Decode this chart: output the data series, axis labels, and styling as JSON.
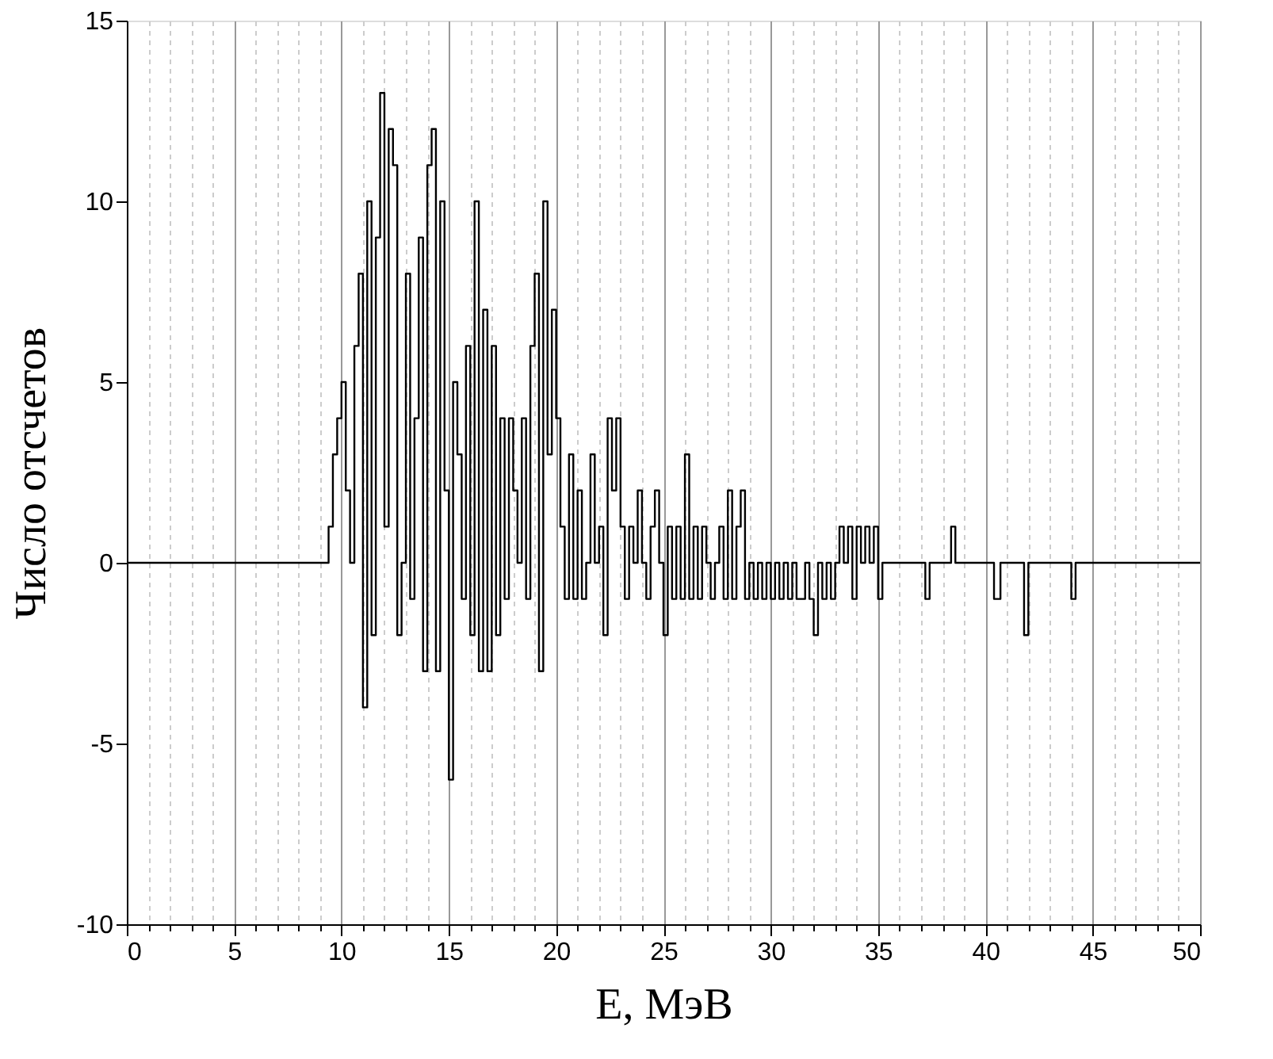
{
  "chart_data": {
    "type": "step",
    "xlabel": "E, МэВ",
    "ylabel": "Число отсчетов",
    "grid": "x",
    "marker": "none",
    "line_style": "solid",
    "xlim": [
      0,
      50
    ],
    "ylim": [
      -10,
      15
    ],
    "yticks": [
      -10,
      -5,
      0,
      5,
      10,
      15
    ],
    "xticks": [
      0,
      {
        "value": 1,
        "label": null
      },
      {
        "value": 2,
        "label": null
      },
      {
        "value": 3,
        "label": null
      },
      {
        "value": 4,
        "label": null
      },
      5,
      {
        "value": 6,
        "label": null
      },
      {
        "value": 7,
        "label": null
      },
      {
        "value": 8,
        "label": null
      },
      {
        "value": 9,
        "label": null
      },
      10,
      {
        "value": 11,
        "label": null
      },
      {
        "value": 12,
        "label": null
      },
      {
        "value": 13,
        "label": null
      },
      {
        "value": 14,
        "label": null
      },
      15,
      {
        "value": 16,
        "label": null
      },
      {
        "value": 17,
        "label": null
      },
      {
        "value": 18,
        "label": null
      },
      {
        "value": 19,
        "label": null
      },
      20,
      {
        "value": 21,
        "label": null
      },
      {
        "value": 22,
        "label": null
      },
      {
        "value": 23,
        "label": null
      },
      {
        "value": 24,
        "label": null
      },
      25,
      {
        "value": 26,
        "label": null
      },
      {
        "value": 27,
        "label": null
      },
      {
        "value": 28,
        "label": null
      },
      {
        "value": 29,
        "label": null
      },
      30,
      {
        "value": 31,
        "label": null
      },
      {
        "value": 32,
        "label": null
      },
      {
        "value": 33,
        "label": null
      },
      {
        "value": 34,
        "label": null
      },
      35,
      {
        "value": 36,
        "label": null
      },
      {
        "value": 37,
        "label": null
      },
      {
        "value": 38,
        "label": null
      },
      {
        "value": 39,
        "label": null
      },
      40,
      {
        "value": 41,
        "label": null
      },
      {
        "value": 42,
        "label": null
      },
      {
        "value": 43,
        "label": null
      },
      {
        "value": 44,
        "label": null
      },
      45,
      {
        "value": 46,
        "label": null
      },
      {
        "value": 47,
        "label": null
      },
      {
        "value": 48,
        "label": null
      },
      {
        "value": 49,
        "label": null
      },
      50
    ],
    "series": [
      {
        "color": "#000000",
        "x": [
          0,
          9.4,
          9.6,
          9.8,
          10.0,
          10.2,
          10.4,
          10.6,
          10.8,
          11.0,
          11.2,
          11.4,
          11.6,
          11.8,
          12.0,
          12.2,
          12.4,
          12.6,
          12.8,
          13.0,
          13.2,
          13.4,
          13.6,
          13.8,
          14.0,
          14.2,
          14.4,
          14.6,
          14.8,
          15.0,
          15.2,
          15.4,
          15.6,
          15.8,
          16.0,
          16.2,
          16.4,
          16.6,
          16.8,
          17.0,
          17.2,
          17.4,
          17.6,
          17.8,
          18.0,
          18.2,
          18.4,
          18.6,
          18.8,
          19.0,
          19.2,
          19.4,
          19.6,
          19.8,
          20.0,
          20.2,
          20.4,
          20.6,
          20.8,
          21.0,
          21.2,
          21.4,
          21.6,
          21.8,
          22.0,
          22.2,
          22.4,
          22.6,
          22.8,
          23.0,
          23.2,
          23.4,
          23.6,
          23.8,
          24.0,
          24.2,
          24.4,
          24.6,
          24.8,
          25.0,
          25.2,
          25.4,
          25.6,
          25.8,
          26.0,
          26.2,
          26.4,
          26.6,
          26.8,
          27.0,
          27.2,
          27.4,
          27.6,
          27.8,
          28.0,
          28.2,
          28.4,
          28.6,
          28.8,
          29.0,
          29.2,
          29.4,
          29.6,
          29.8,
          30.0,
          30.2,
          30.4,
          30.6,
          30.8,
          31.0,
          31.2,
          31.4,
          31.6,
          31.8,
          32.0,
          32.2,
          32.4,
          32.6,
          32.8,
          33.0,
          33.2,
          33.4,
          33.6,
          33.8,
          34.0,
          34.2,
          34.4,
          34.6,
          34.8,
          35.0,
          35.2,
          37.2,
          37.4,
          38.4,
          38.6,
          40.4,
          40.7,
          41.8,
          42.0,
          44.0,
          44.2,
          50
        ],
        "values": [
          0,
          1,
          3,
          4,
          5,
          2,
          0,
          6,
          8,
          -4,
          10,
          -2,
          9,
          13,
          1,
          12,
          11,
          -2,
          0,
          8,
          -1,
          4,
          9,
          -3,
          11,
          12,
          -3,
          10,
          2,
          -6,
          5,
          3,
          -1,
          6,
          -2,
          10,
          -3,
          7,
          -3,
          6,
          -2,
          4,
          -1,
          4,
          2,
          0,
          4,
          -1,
          6,
          8,
          -3,
          10,
          3,
          7,
          4,
          1,
          -1,
          3,
          -1,
          2,
          -1,
          0,
          3,
          0,
          1,
          -2,
          4,
          2,
          4,
          1,
          -1,
          1,
          0,
          2,
          0,
          -1,
          1,
          2,
          0,
          -2,
          1,
          -1,
          1,
          -1,
          3,
          -1,
          1,
          -1,
          1,
          0,
          -1,
          0,
          1,
          -1,
          2,
          -1,
          1,
          2,
          -1,
          0,
          -1,
          0,
          -1,
          0,
          -1,
          0,
          -1,
          0,
          -1,
          0,
          -1,
          -1,
          0,
          -1,
          -2,
          0,
          -1,
          0,
          -1,
          0,
          1,
          0,
          1,
          -1,
          1,
          0,
          1,
          0,
          1,
          -1,
          0,
          -1,
          0,
          1,
          0,
          -1,
          0,
          -2,
          0,
          -1,
          0,
          0
        ]
      }
    ]
  }
}
